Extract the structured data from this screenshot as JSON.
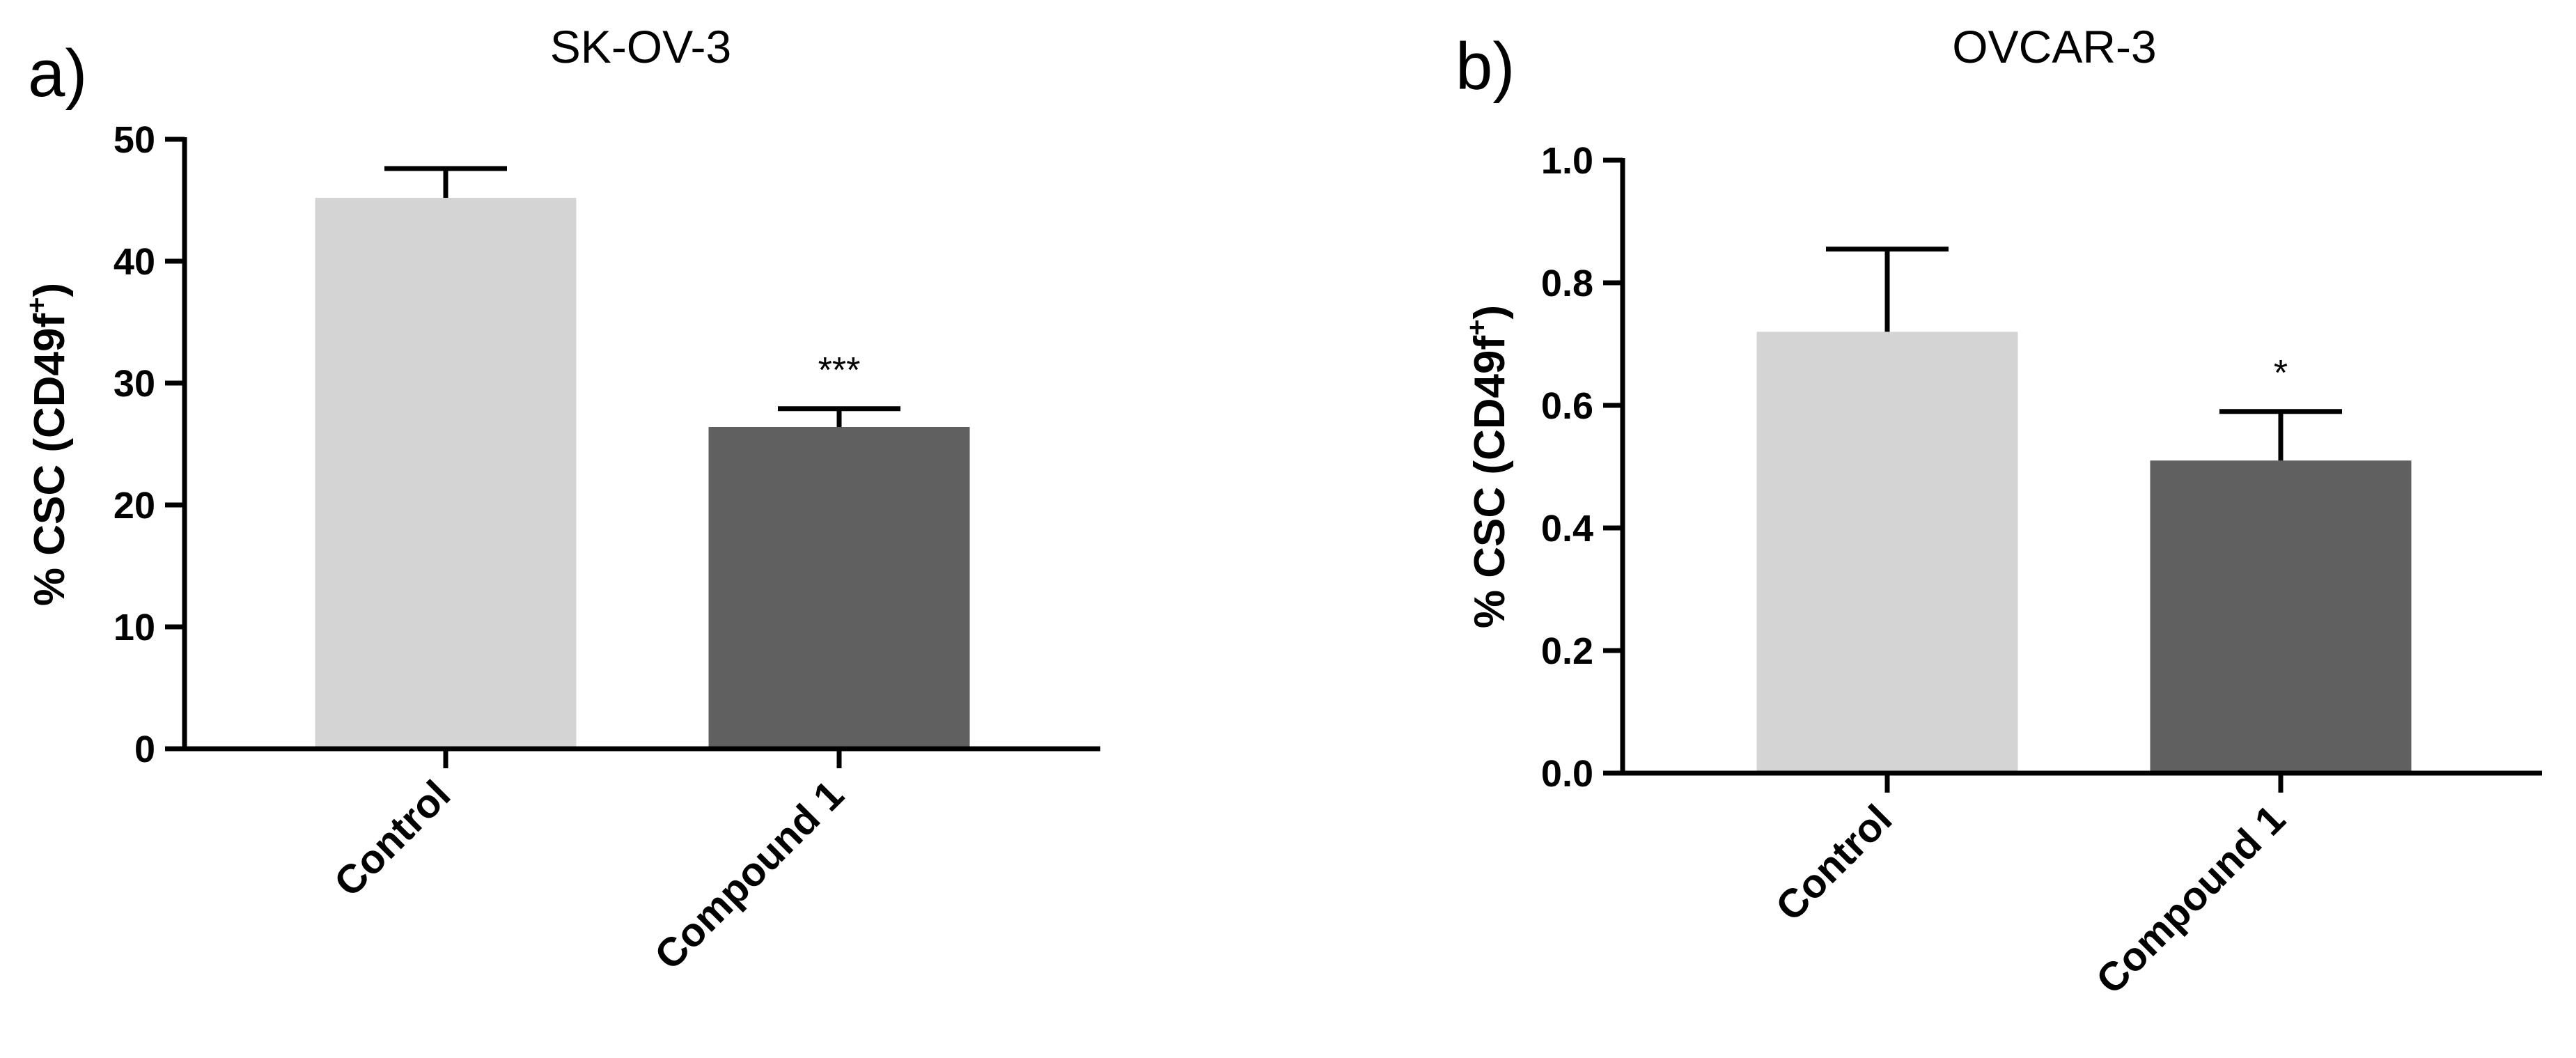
{
  "chart_data": [
    {
      "type": "bar",
      "panel_label": "a)",
      "title": "SK-OV-3",
      "ylabel_main": "% CSC (CD49f",
      "ylabel_sup": "+",
      "ylabel_close": ")",
      "ylim": [
        0,
        50
      ],
      "yticks": [
        0,
        10,
        20,
        30,
        40,
        50
      ],
      "ytick_labels": [
        "0",
        "10",
        "20",
        "30",
        "40",
        "50"
      ],
      "categories": [
        "Control",
        "Compound 1"
      ],
      "values": [
        45.2,
        26.4
      ],
      "errors": [
        2.4,
        1.5
      ],
      "bar_colors": [
        "#d4d4d4",
        "#606060"
      ],
      "annotations": [
        "",
        "***"
      ],
      "grid": false
    },
    {
      "type": "bar",
      "panel_label": "b)",
      "title": "OVCAR-3",
      "ylabel_main": "% CSC (CD49f",
      "ylabel_sup": "+",
      "ylabel_close": ")",
      "ylim": [
        0,
        1.0
      ],
      "yticks": [
        0,
        0.2,
        0.4,
        0.6,
        0.8,
        1.0
      ],
      "ytick_labels": [
        "0.0",
        "0.2",
        "0.4",
        "0.6",
        "0.8",
        "1.0"
      ],
      "categories": [
        "Control",
        "Compound 1"
      ],
      "values": [
        0.72,
        0.51
      ],
      "errors": [
        0.135,
        0.08
      ],
      "bar_colors": [
        "#d4d4d4",
        "#606060"
      ],
      "annotations": [
        "",
        "*"
      ],
      "grid": false
    }
  ]
}
